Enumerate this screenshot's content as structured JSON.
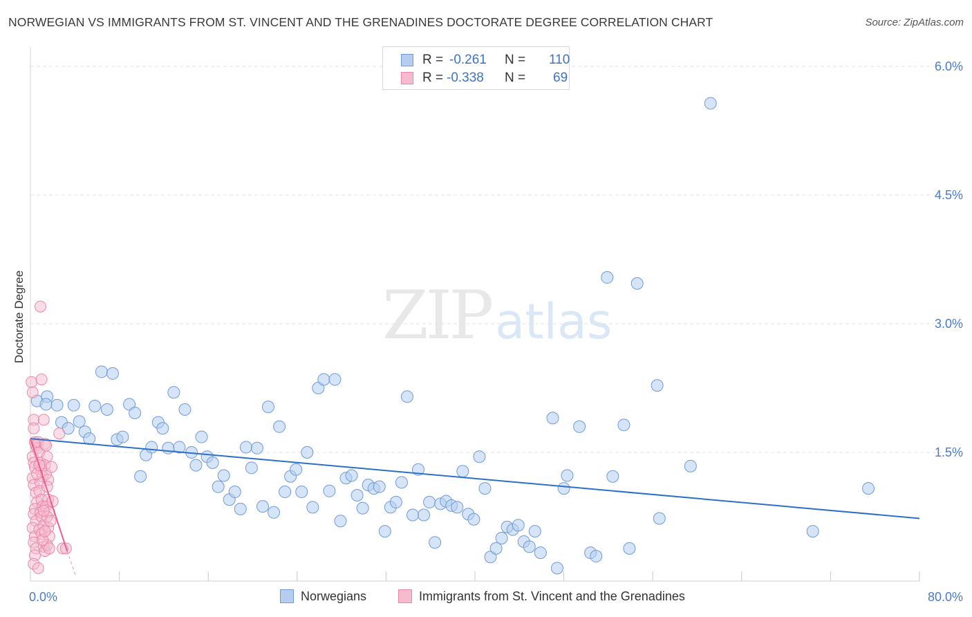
{
  "title": "NORWEGIAN VS IMMIGRANTS FROM ST. VINCENT AND THE GRENADINES DOCTORATE DEGREE CORRELATION CHART",
  "source": "Source: ZipAtlas.com",
  "watermark": {
    "zip": "ZIP",
    "atlas": "atlas"
  },
  "legend": {
    "rows": [
      {
        "r_label": "R =",
        "r_value": "-0.261",
        "n_label": "N =",
        "n_value": "110"
      },
      {
        "r_label": "R =",
        "r_value": "-0.338",
        "n_label": "N =",
        "n_value": "69"
      }
    ]
  },
  "bottom_legend": {
    "series1": "Norwegians",
    "series2": "Immigrants from St. Vincent and the Grenadines"
  },
  "colors": {
    "blue_fill": "#b4cdf0",
    "blue_stroke": "#6f9ad8",
    "blue_line": "#2c6fcb",
    "pink_fill": "#f6bccd",
    "pink_stroke": "#e987a8",
    "pink_line": "#e8608f",
    "tick_text": "#4a7cc9",
    "grid": "#e3e3e3"
  },
  "chart_data": {
    "type": "scatter",
    "title": "NORWEGIAN VS IMMIGRANTS FROM ST. VINCENT AND THE GRENADINES DOCTORATE DEGREE CORRELATION CHART",
    "xlabel": "",
    "ylabel": "Doctorate Degree",
    "xlim": [
      0,
      80
    ],
    "ylim": [
      0,
      6.0
    ],
    "x_tick_labels": [
      "0.0%",
      "80.0%"
    ],
    "y_ticks": [
      1.5,
      3.0,
      4.5,
      6.0
    ],
    "y_tick_labels": [
      "1.5%",
      "3.0%",
      "4.5%",
      "6.0%"
    ],
    "grid": "horizontal dashed",
    "legend_position": "top-center",
    "series": [
      {
        "name": "Norwegians",
        "R": -0.261,
        "N": 110,
        "trend": {
          "x": [
            0,
            80
          ],
          "y": [
            1.66,
            0.73
          ]
        },
        "points": [
          [
            0.6,
            2.1
          ],
          [
            1.5,
            2.15
          ],
          [
            1.4,
            2.06
          ],
          [
            2.4,
            2.05
          ],
          [
            2.8,
            1.85
          ],
          [
            3.4,
            1.78
          ],
          [
            3.9,
            2.05
          ],
          [
            4.4,
            1.86
          ],
          [
            4.9,
            1.74
          ],
          [
            5.3,
            1.66
          ],
          [
            5.8,
            2.04
          ],
          [
            6.4,
            2.44
          ],
          [
            6.9,
            2.0
          ],
          [
            7.4,
            2.42
          ],
          [
            7.8,
            1.65
          ],
          [
            8.3,
            1.68
          ],
          [
            8.9,
            2.06
          ],
          [
            9.4,
            1.96
          ],
          [
            9.9,
            1.22
          ],
          [
            10.4,
            1.47
          ],
          [
            10.9,
            1.56
          ],
          [
            11.5,
            1.85
          ],
          [
            11.9,
            1.78
          ],
          [
            12.4,
            1.55
          ],
          [
            12.9,
            2.2
          ],
          [
            13.4,
            1.56
          ],
          [
            13.9,
            2.0
          ],
          [
            14.5,
            1.5
          ],
          [
            14.9,
            1.35
          ],
          [
            15.4,
            1.68
          ],
          [
            15.9,
            1.45
          ],
          [
            16.4,
            1.38
          ],
          [
            16.9,
            1.1
          ],
          [
            17.4,
            1.23
          ],
          [
            17.9,
            0.95
          ],
          [
            18.4,
            1.04
          ],
          [
            18.9,
            0.84
          ],
          [
            19.4,
            1.56
          ],
          [
            19.9,
            1.32
          ],
          [
            20.4,
            1.55
          ],
          [
            20.9,
            0.87
          ],
          [
            21.4,
            2.03
          ],
          [
            21.9,
            0.8
          ],
          [
            22.4,
            1.8
          ],
          [
            22.9,
            1.04
          ],
          [
            23.4,
            1.22
          ],
          [
            23.9,
            1.3
          ],
          [
            24.4,
            1.04
          ],
          [
            24.9,
            1.5
          ],
          [
            25.4,
            0.86
          ],
          [
            25.9,
            2.25
          ],
          [
            26.4,
            2.35
          ],
          [
            26.9,
            1.05
          ],
          [
            27.4,
            2.35
          ],
          [
            27.9,
            0.7
          ],
          [
            28.4,
            1.2
          ],
          [
            28.9,
            1.23
          ],
          [
            29.4,
            1.0
          ],
          [
            29.9,
            0.85
          ],
          [
            30.4,
            1.12
          ],
          [
            30.9,
            1.08
          ],
          [
            31.4,
            1.1
          ],
          [
            31.9,
            0.58
          ],
          [
            32.4,
            0.86
          ],
          [
            32.9,
            0.92
          ],
          [
            33.4,
            1.15
          ],
          [
            33.9,
            2.15
          ],
          [
            34.4,
            0.77
          ],
          [
            34.9,
            1.3
          ],
          [
            35.4,
            0.77
          ],
          [
            35.9,
            0.92
          ],
          [
            36.4,
            0.45
          ],
          [
            36.9,
            0.9
          ],
          [
            37.4,
            0.93
          ],
          [
            37.9,
            0.88
          ],
          [
            38.4,
            0.86
          ],
          [
            38.9,
            1.28
          ],
          [
            39.4,
            0.78
          ],
          [
            39.9,
            0.72
          ],
          [
            40.4,
            1.45
          ],
          [
            40.9,
            1.08
          ],
          [
            41.4,
            0.28
          ],
          [
            41.9,
            0.38
          ],
          [
            42.4,
            0.5
          ],
          [
            42.9,
            0.63
          ],
          [
            43.4,
            0.6
          ],
          [
            43.9,
            0.65
          ],
          [
            44.4,
            0.46
          ],
          [
            44.9,
            0.4
          ],
          [
            45.4,
            0.58
          ],
          [
            45.9,
            0.33
          ],
          [
            47.0,
            1.9
          ],
          [
            47.4,
            0.15
          ],
          [
            48.0,
            1.08
          ],
          [
            48.3,
            1.23
          ],
          [
            49.4,
            1.8
          ],
          [
            50.4,
            0.33
          ],
          [
            50.9,
            0.29
          ],
          [
            51.9,
            3.54
          ],
          [
            52.4,
            1.22
          ],
          [
            53.4,
            1.82
          ],
          [
            53.9,
            0.38
          ],
          [
            54.6,
            3.47
          ],
          [
            56.4,
            2.28
          ],
          [
            56.6,
            0.73
          ],
          [
            59.4,
            1.34
          ],
          [
            61.2,
            5.57
          ],
          [
            70.4,
            0.58
          ],
          [
            75.4,
            1.08
          ]
        ]
      },
      {
        "name": "Immigrants from St. Vincent and the Grenadines",
        "R": -0.338,
        "N": 69,
        "trend": {
          "x": [
            0,
            3.3
          ],
          "y": [
            1.66,
            0.35
          ]
        },
        "trend_dashed": {
          "x": [
            3.3,
            4.1
          ],
          "y": [
            0.35,
            0.05
          ]
        },
        "points": [
          [
            0.1,
            2.32
          ],
          [
            0.2,
            2.2
          ],
          [
            0.3,
            1.88
          ],
          [
            0.3,
            1.78
          ],
          [
            0.4,
            1.62
          ],
          [
            0.5,
            1.58
          ],
          [
            0.2,
            1.45
          ],
          [
            0.3,
            1.38
          ],
          [
            0.4,
            1.33
          ],
          [
            0.2,
            1.2
          ],
          [
            0.3,
            1.12
          ],
          [
            0.5,
            1.03
          ],
          [
            0.6,
            0.92
          ],
          [
            0.4,
            0.84
          ],
          [
            0.3,
            0.78
          ],
          [
            0.5,
            0.7
          ],
          [
            0.2,
            0.62
          ],
          [
            0.4,
            0.52
          ],
          [
            0.3,
            0.45
          ],
          [
            0.5,
            0.38
          ],
          [
            0.4,
            0.3
          ],
          [
            0.3,
            0.2
          ],
          [
            0.6,
            1.55
          ],
          [
            0.7,
            1.62
          ],
          [
            0.8,
            1.5
          ],
          [
            0.9,
            1.38
          ],
          [
            1.0,
            1.3
          ],
          [
            1.1,
            1.22
          ],
          [
            0.9,
            1.15
          ],
          [
            0.8,
            1.05
          ],
          [
            1.0,
            0.95
          ],
          [
            1.1,
            0.87
          ],
          [
            0.9,
            0.8
          ],
          [
            1.0,
            0.75
          ],
          [
            1.2,
            0.65
          ],
          [
            0.8,
            0.6
          ],
          [
            1.0,
            0.55
          ],
          [
            1.2,
            0.4
          ],
          [
            1.3,
            0.35
          ],
          [
            0.9,
            3.2
          ],
          [
            1.0,
            2.35
          ],
          [
            1.2,
            1.88
          ],
          [
            1.3,
            1.6
          ],
          [
            1.4,
            1.58
          ],
          [
            1.5,
            1.45
          ],
          [
            1.3,
            1.35
          ],
          [
            1.4,
            1.25
          ],
          [
            1.6,
            1.18
          ],
          [
            1.5,
            1.1
          ],
          [
            1.6,
            0.95
          ],
          [
            1.4,
            0.87
          ],
          [
            1.7,
            0.8
          ],
          [
            1.5,
            0.75
          ],
          [
            1.6,
            0.62
          ],
          [
            1.7,
            0.52
          ],
          [
            1.5,
            0.42
          ],
          [
            1.7,
            0.38
          ],
          [
            1.9,
            1.33
          ],
          [
            2.0,
            0.93
          ],
          [
            1.8,
            0.7
          ],
          [
            0.7,
            0.15
          ],
          [
            1.1,
            0.48
          ],
          [
            1.3,
            0.58
          ],
          [
            0.6,
            1.25
          ],
          [
            2.6,
            1.72
          ],
          [
            2.9,
            0.38
          ],
          [
            3.2,
            0.38
          ],
          [
            0.8,
            1.35
          ],
          [
            1.2,
            0.82
          ]
        ]
      }
    ]
  }
}
